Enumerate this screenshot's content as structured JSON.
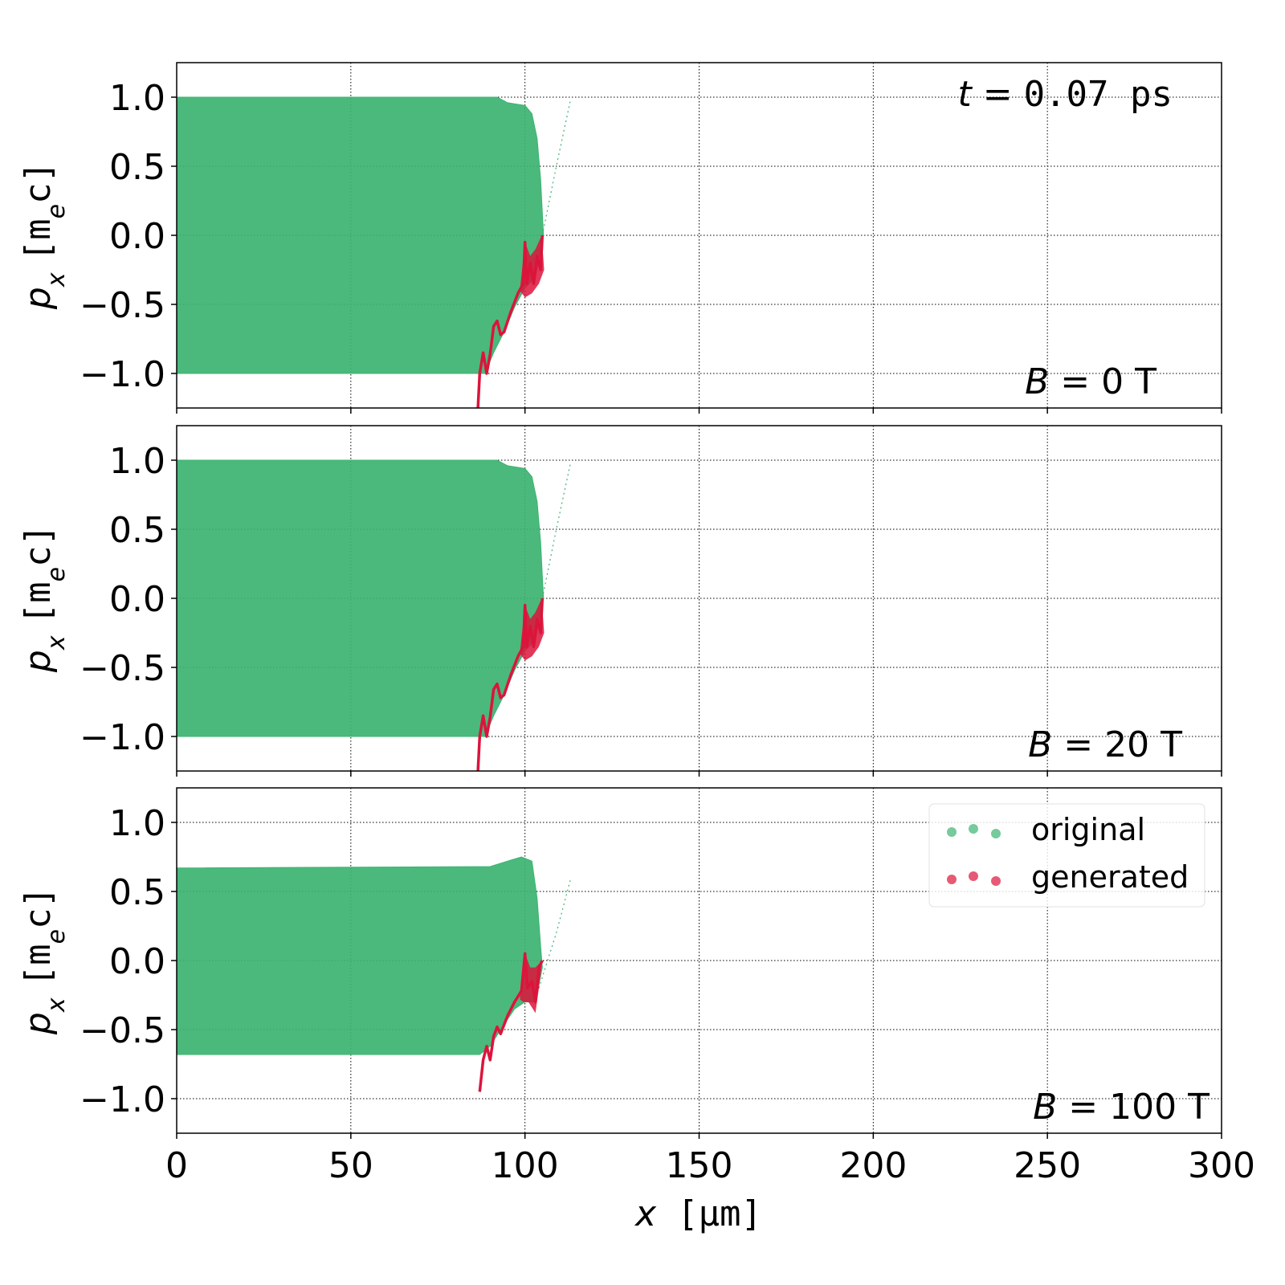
{
  "chart_data": {
    "type": "scatter",
    "xlabel_var": "x",
    "xlabel_unit": "[μm]",
    "ylabel_var": "p",
    "ylabel_sub": "x",
    "ylabel_unit": "[m",
    "ylabel_unit_sub": "e",
    "ylabel_unit_end": "c]",
    "xlim": [
      0,
      300
    ],
    "ylim": [
      -1.25,
      1.25
    ],
    "xticks": [
      0,
      50,
      100,
      150,
      200,
      250,
      300
    ],
    "xtick_labels": [
      "0",
      "50",
      "100",
      "150",
      "200",
      "250",
      "300"
    ],
    "yticks": [
      1.0,
      0.5,
      0.0,
      -0.5,
      -1.0
    ],
    "ytick_labels": [
      "1.0",
      "0.5",
      "0.0",
      "−0.5",
      "−1.0"
    ],
    "grid": true,
    "time_label": {
      "var": "t",
      "eq": " = ",
      "value": "0.07 ps"
    },
    "colors": {
      "original": "#3cb371",
      "generated": "#dc143c"
    },
    "legend": {
      "placement": "upper-right",
      "panel": 3,
      "entries": [
        "original",
        "generated"
      ]
    },
    "panels": [
      {
        "annotation": {
          "var": "B",
          "eq": " = ",
          "value": "0 T"
        },
        "original_outline": [
          [
            0,
            1.0
          ],
          [
            92,
            1.0
          ],
          [
            95,
            0.96
          ],
          [
            100,
            0.94
          ],
          [
            102,
            0.88
          ],
          [
            103.5,
            0.7
          ],
          [
            104.5,
            0.4
          ],
          [
            105.3,
            0.0
          ],
          [
            103,
            -0.3
          ],
          [
            100,
            -0.38
          ],
          [
            97,
            -0.52
          ],
          [
            94,
            -0.7
          ],
          [
            91,
            -0.85
          ],
          [
            88.5,
            -1.0
          ],
          [
            0,
            -1.0
          ]
        ],
        "original_stray": [
          [
            105,
            0.0
          ],
          [
            109,
            0.5
          ],
          [
            113,
            0.97
          ]
        ],
        "generated_curve": [
          [
            86.5,
            -1.25
          ],
          [
            87,
            -1.0
          ],
          [
            88,
            -0.85
          ],
          [
            89,
            -1.0
          ],
          [
            90,
            -0.86
          ],
          [
            91,
            -0.66
          ],
          [
            92,
            -0.62
          ],
          [
            93,
            -0.72
          ],
          [
            94,
            -0.7
          ],
          [
            96,
            -0.55
          ],
          [
            98,
            -0.42
          ],
          [
            99.5,
            -0.35
          ],
          [
            100,
            -0.05
          ],
          [
            100.5,
            -0.35
          ],
          [
            101.5,
            -0.2
          ],
          [
            102.5,
            -0.35
          ],
          [
            103.5,
            -0.15
          ],
          [
            104.5,
            -0.25
          ],
          [
            105,
            0.0
          ]
        ],
        "generated_band": [
          [
            98.5,
            -0.4
          ],
          [
            100,
            -0.05
          ],
          [
            101.5,
            -0.15
          ],
          [
            103,
            -0.1
          ],
          [
            104.8,
            0.0
          ],
          [
            105.5,
            -0.25
          ],
          [
            104,
            -0.35
          ],
          [
            102,
            -0.42
          ],
          [
            100,
            -0.45
          ]
        ]
      },
      {
        "annotation": {
          "var": "B",
          "eq": " = ",
          "value": "20 T"
        },
        "original_outline": [
          [
            0,
            1.0
          ],
          [
            92,
            1.0
          ],
          [
            95,
            0.96
          ],
          [
            100,
            0.94
          ],
          [
            102,
            0.88
          ],
          [
            103.5,
            0.7
          ],
          [
            104.5,
            0.4
          ],
          [
            105.3,
            0.0
          ],
          [
            103,
            -0.3
          ],
          [
            100,
            -0.38
          ],
          [
            97,
            -0.52
          ],
          [
            94,
            -0.7
          ],
          [
            91,
            -0.85
          ],
          [
            88.5,
            -1.0
          ],
          [
            0,
            -1.0
          ]
        ],
        "original_stray": [
          [
            105,
            0.0
          ],
          [
            109,
            0.5
          ],
          [
            113,
            0.97
          ]
        ],
        "generated_curve": [
          [
            86.5,
            -1.25
          ],
          [
            87,
            -1.0
          ],
          [
            88,
            -0.85
          ],
          [
            89,
            -1.0
          ],
          [
            90,
            -0.86
          ],
          [
            91,
            -0.66
          ],
          [
            92,
            -0.62
          ],
          [
            93,
            -0.72
          ],
          [
            94,
            -0.7
          ],
          [
            96,
            -0.55
          ],
          [
            98,
            -0.42
          ],
          [
            99.5,
            -0.35
          ],
          [
            100,
            -0.05
          ],
          [
            100.5,
            -0.35
          ],
          [
            101.5,
            -0.2
          ],
          [
            102.5,
            -0.35
          ],
          [
            103.5,
            -0.15
          ],
          [
            104.5,
            -0.25
          ],
          [
            105,
            0.0
          ]
        ],
        "generated_band": [
          [
            98.5,
            -0.4
          ],
          [
            100,
            -0.05
          ],
          [
            101.5,
            -0.15
          ],
          [
            103,
            -0.1
          ],
          [
            104.8,
            0.0
          ],
          [
            105.5,
            -0.25
          ],
          [
            104,
            -0.35
          ],
          [
            102,
            -0.42
          ],
          [
            100,
            -0.45
          ]
        ]
      },
      {
        "annotation": {
          "var": "B",
          "eq": " = ",
          "value": "100 T"
        },
        "original_outline": [
          [
            0,
            0.67
          ],
          [
            90,
            0.68
          ],
          [
            95,
            0.72
          ],
          [
            99,
            0.75
          ],
          [
            102,
            0.72
          ],
          [
            103.5,
            0.45
          ],
          [
            104.5,
            0.1
          ],
          [
            105,
            -0.05
          ],
          [
            103,
            -0.3
          ],
          [
            100,
            -0.3
          ],
          [
            97,
            -0.35
          ],
          [
            93,
            -0.5
          ],
          [
            90,
            -0.62
          ],
          [
            87,
            -0.68
          ],
          [
            0,
            -0.68
          ]
        ],
        "original_stray": [
          [
            104,
            -0.2
          ],
          [
            109,
            0.2
          ],
          [
            113,
            0.58
          ]
        ],
        "generated_curve": [
          [
            87,
            -0.95
          ],
          [
            88,
            -0.72
          ],
          [
            89,
            -0.62
          ],
          [
            90,
            -0.72
          ],
          [
            91,
            -0.55
          ],
          [
            92,
            -0.48
          ],
          [
            93,
            -0.53
          ],
          [
            95,
            -0.4
          ],
          [
            97,
            -0.3
          ],
          [
            99,
            -0.22
          ],
          [
            100,
            0.05
          ],
          [
            100.7,
            -0.2
          ],
          [
            102,
            -0.15
          ],
          [
            103,
            -0.3
          ],
          [
            104,
            -0.05
          ],
          [
            105,
            0.0
          ]
        ],
        "generated_band": [
          [
            98.5,
            -0.28
          ],
          [
            100,
            0.05
          ],
          [
            101.5,
            -0.05
          ],
          [
            103,
            -0.05
          ],
          [
            105,
            0.0
          ],
          [
            104,
            -0.2
          ],
          [
            103,
            -0.38
          ],
          [
            101,
            -0.3
          ],
          [
            99.5,
            -0.3
          ]
        ]
      }
    ]
  }
}
